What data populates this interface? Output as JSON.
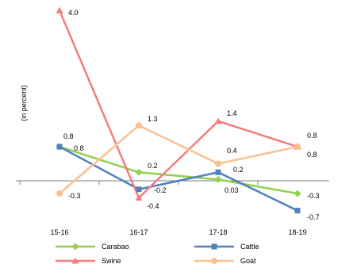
{
  "chart_data": {
    "type": "line",
    "title": "",
    "xlabel": "",
    "ylabel": "(in percent)",
    "categories": [
      "15-16",
      "16-17",
      "17-18",
      "18-19"
    ],
    "ylim": [
      -1.0,
      4.2
    ],
    "grid": false,
    "legend_position": "bottom",
    "series": [
      {
        "name": "Carabao",
        "color": "#92D050",
        "marker": "diamond",
        "values": [
          0.8,
          0.2,
          0.03,
          -0.3
        ]
      },
      {
        "name": "Cattle",
        "color": "#4F81BD",
        "marker": "square",
        "values": [
          0.8,
          -0.2,
          0.2,
          -0.7
        ]
      },
      {
        "name": "Swine",
        "color": "#F47C7C",
        "marker": "triangle",
        "values": [
          4.0,
          -0.4,
          1.4,
          0.8
        ]
      },
      {
        "name": "Goat",
        "color": "#FAC090",
        "marker": "circle",
        "values": [
          -0.3,
          1.3,
          0.4,
          0.8
        ]
      }
    ],
    "data_labels": [
      {
        "text": "4.0"
      },
      {
        "text": "0.8"
      },
      {
        "text": "0.8"
      },
      {
        "text": "-0.3"
      },
      {
        "text": "1.3"
      },
      {
        "text": "0.2"
      },
      {
        "text": "-0.2"
      },
      {
        "text": "-0.4"
      },
      {
        "text": "1.4"
      },
      {
        "text": "0.4"
      },
      {
        "text": "0.2"
      },
      {
        "text": "0.03"
      },
      {
        "text": "0.8"
      },
      {
        "text": "0.8"
      },
      {
        "text": "-0.3"
      },
      {
        "text": "-0.7"
      }
    ]
  }
}
